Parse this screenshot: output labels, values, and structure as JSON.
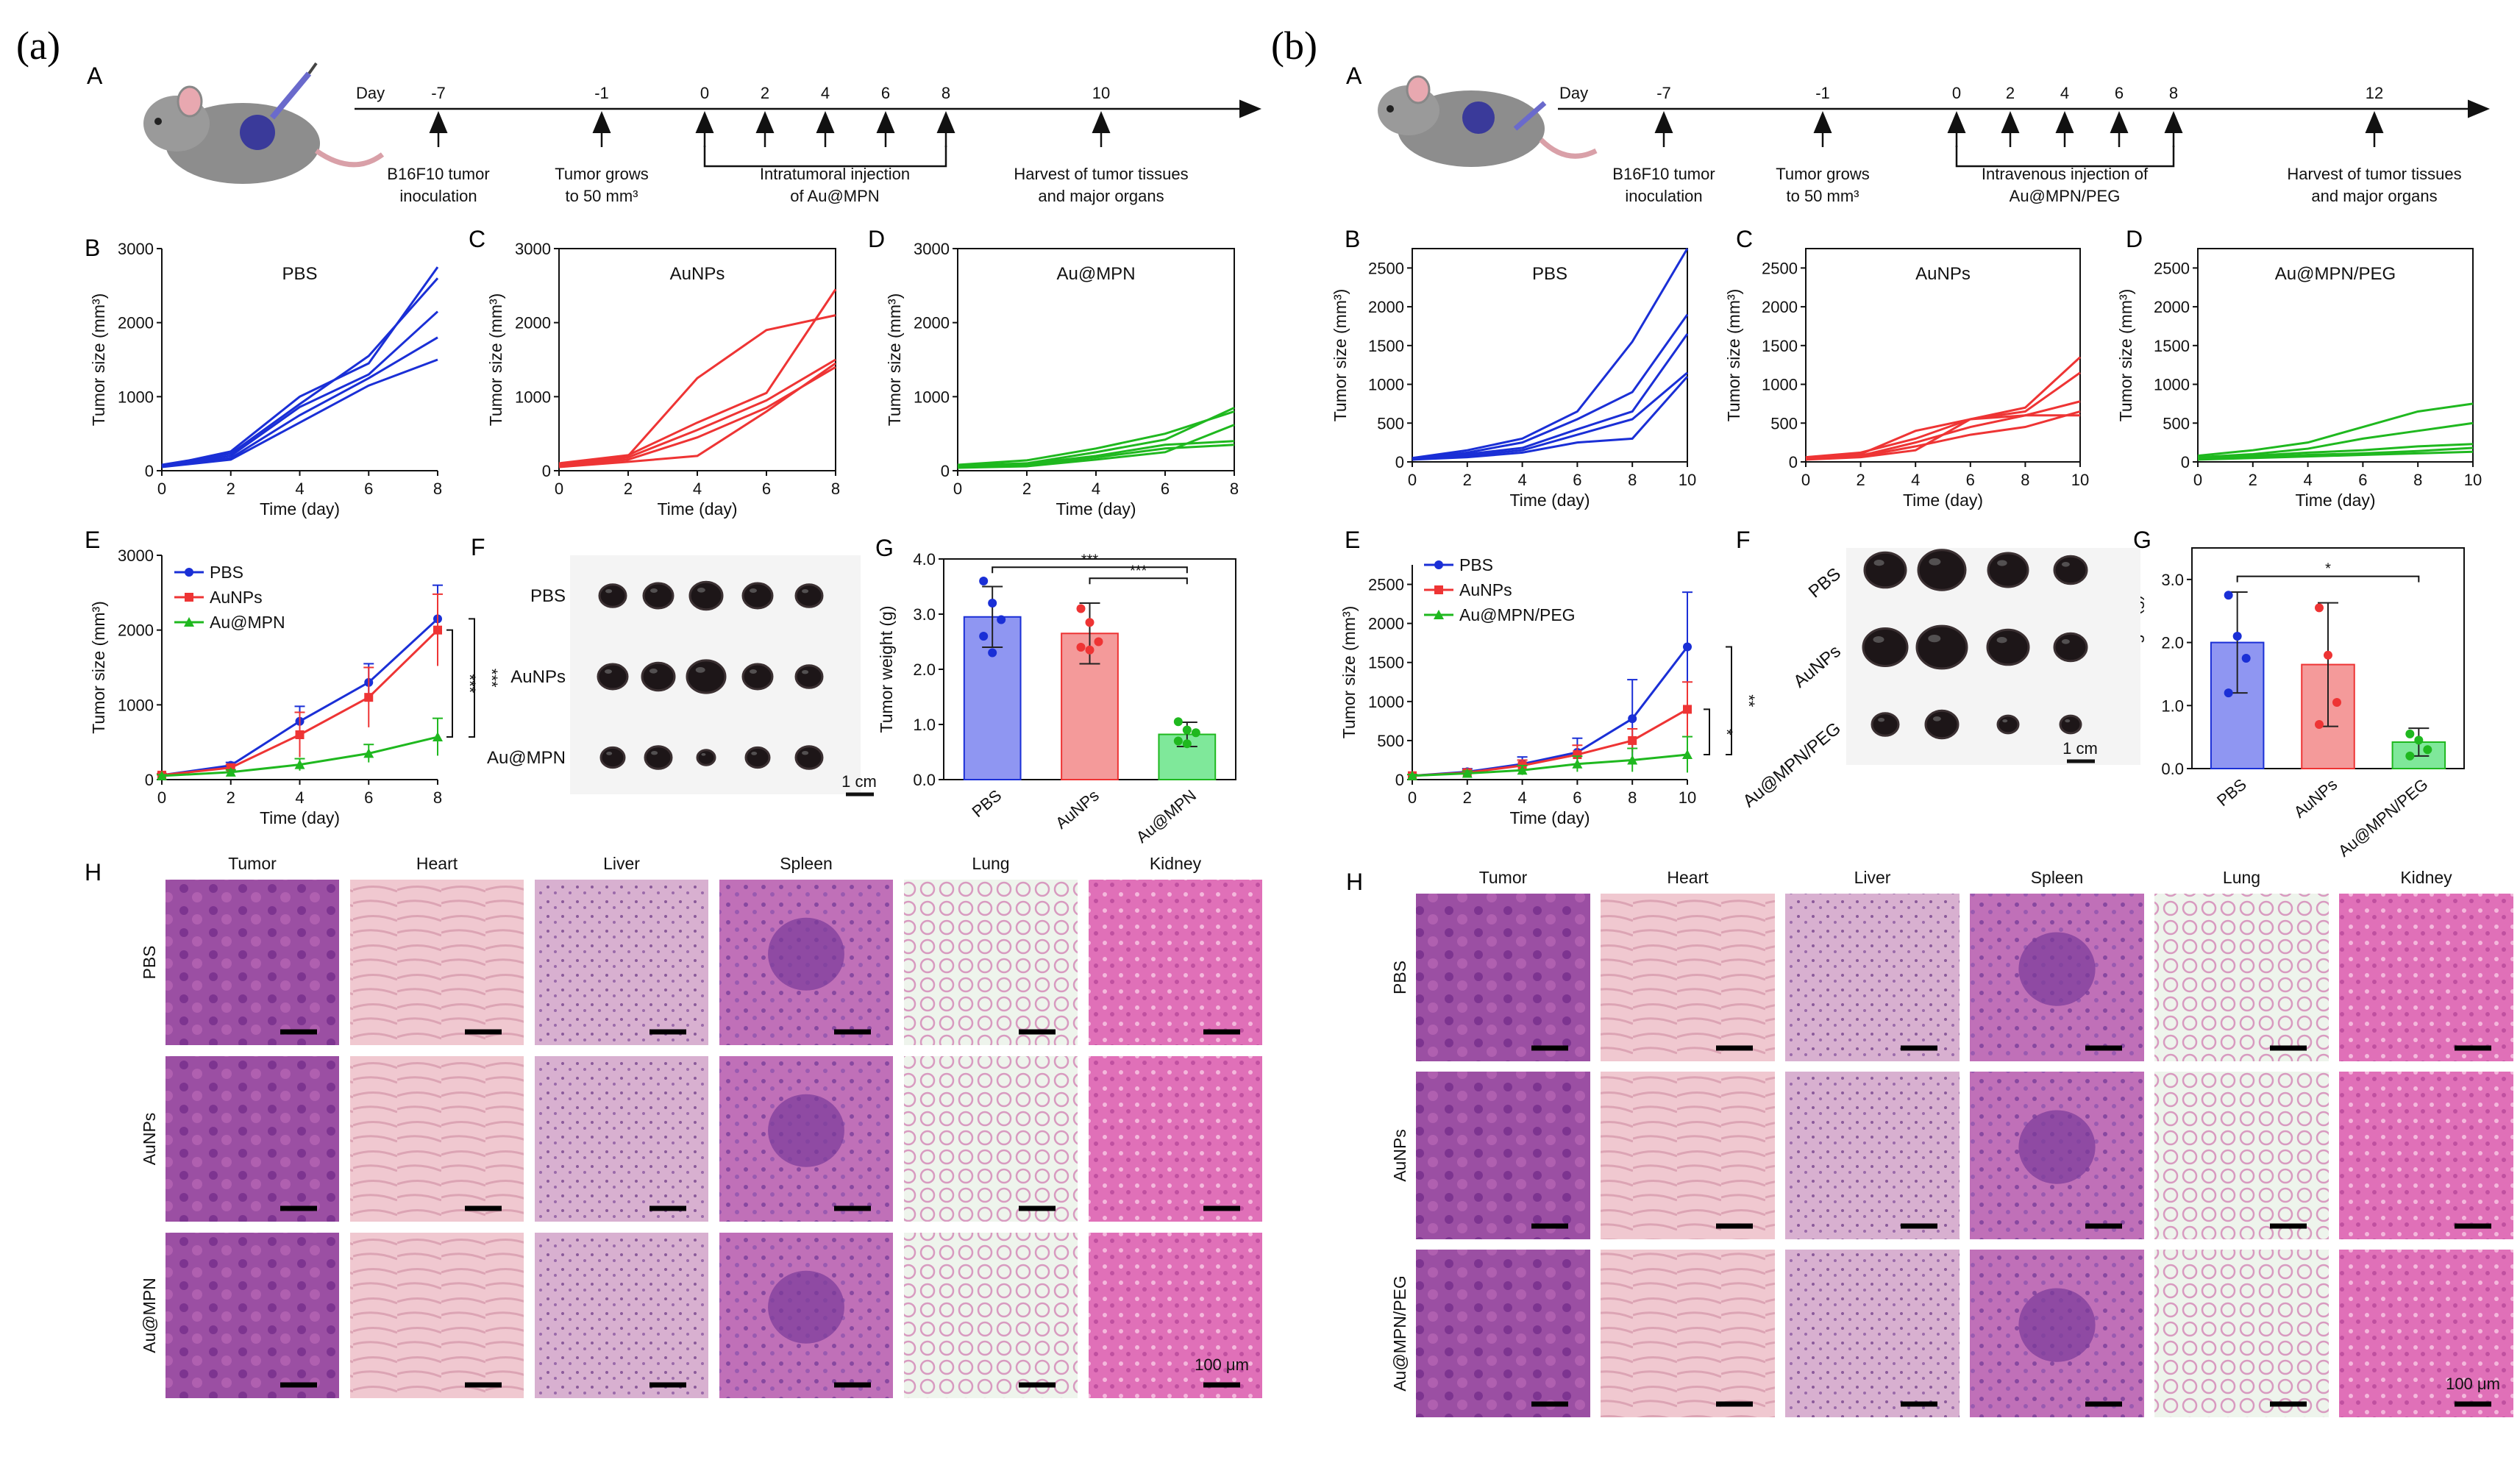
{
  "panel_letters": {
    "a": "(a)",
    "b": "(b)"
  },
  "sub_a": {
    "A": "A",
    "B": "B",
    "C": "C",
    "D": "D",
    "E": "E",
    "F": "F",
    "G": "G",
    "H": "H"
  },
  "sub_b": {
    "A": "A",
    "B": "B",
    "C": "C",
    "D": "D",
    "E": "E",
    "F": "F",
    "G": "G",
    "H": "H"
  },
  "timeline_a": {
    "day_label": "Day",
    "ticks": [
      "-7",
      "-1",
      "0",
      "2",
      "4",
      "6",
      "8",
      "10"
    ],
    "labels": [
      [
        "B16F10 tumor",
        "inoculation"
      ],
      [
        "Tumor grows",
        "to 50 mm³"
      ],
      [
        "Intratumoral injection",
        "of Au@MPN"
      ],
      [
        "Harvest of tumor tissues",
        "and major organs"
      ]
    ]
  },
  "timeline_b": {
    "day_label": "Day",
    "ticks": [
      "-7",
      "-1",
      "0",
      "2",
      "4",
      "6",
      "8",
      "12"
    ],
    "labels": [
      [
        "B16F10 tumor",
        "inoculation"
      ],
      [
        "Tumor grows",
        "to 50 mm³"
      ],
      [
        "Intravenous injection of",
        "Au@MPN/PEG"
      ],
      [
        "Harvest of tumor tissues",
        "and major organs"
      ]
    ]
  },
  "axis_text": {
    "time": "Time (day)",
    "tumor_size": "Tumor size (mm³)",
    "tumor_weight": "Tumor weight (g)"
  },
  "legend_a": [
    "PBS",
    "AuNPs",
    "Au@MPN"
  ],
  "legend_b": [
    "PBS",
    "AuNPs",
    "Au@MPN/PEG"
  ],
  "photo_a": {
    "rows": [
      "PBS",
      "AuNPs",
      "Au@MPN"
    ],
    "scale": "1 cm"
  },
  "photo_b": {
    "rows": [
      "PBS",
      "AuNPs",
      "Au@MPN/PEG"
    ],
    "scale": "1 cm"
  },
  "histo_a": {
    "cols": [
      "Tumor",
      "Heart",
      "Liver",
      "Spleen",
      "Lung",
      "Kidney"
    ],
    "rows": [
      "PBS",
      "AuNPs",
      "Au@MPN"
    ],
    "scale": "100 μm"
  },
  "histo_b": {
    "cols": [
      "Tumor",
      "Heart",
      "Liver",
      "Spleen",
      "Lung",
      "Kidney"
    ],
    "rows": [
      "PBS",
      "AuNPs",
      "Au@MPN/PEG"
    ],
    "scale": "100 μm"
  },
  "colors": {
    "PBS": "#1a2fd6",
    "AuNPs": "#ee3434",
    "AuMPN": "#1fb81f",
    "bar_pbs": "#8f96f2",
    "bar_aunps": "#f49a9a",
    "bar_aumpn": "#7fe89a"
  },
  "chart_data": [
    {
      "id": "aB",
      "type": "line",
      "title": "PBS",
      "xlabel": "Time (day)",
      "ylabel": "Tumor size (mm³)",
      "xlim": [
        0,
        8
      ],
      "ylim": [
        0,
        3000
      ],
      "xticks": [
        0,
        2,
        4,
        6,
        8
      ],
      "yticks": [
        0,
        1000,
        2000,
        3000
      ],
      "x": [
        0,
        2,
        4,
        6,
        8
      ],
      "color": "#1a2fd6",
      "series": [
        {
          "values": [
            60,
            260,
            1000,
            1450,
            2750
          ]
        },
        {
          "values": [
            80,
            230,
            900,
            1550,
            2600
          ]
        },
        {
          "values": [
            70,
            200,
            860,
            1300,
            2150
          ]
        },
        {
          "values": [
            60,
            170,
            750,
            1250,
            1800
          ]
        },
        {
          "values": [
            50,
            150,
            650,
            1150,
            1500
          ]
        }
      ]
    },
    {
      "id": "aC",
      "type": "line",
      "title": "AuNPs",
      "xlabel": "Time (day)",
      "ylabel": "Tumor size (mm³)",
      "xlim": [
        0,
        8
      ],
      "ylim": [
        0,
        3000
      ],
      "xticks": [
        0,
        2,
        4,
        6,
        8
      ],
      "yticks": [
        0,
        1000,
        2000,
        3000
      ],
      "x": [
        0,
        2,
        4,
        6,
        8
      ],
      "color": "#ee3434",
      "series": [
        {
          "values": [
            80,
            200,
            1250,
            1900,
            2100
          ]
        },
        {
          "values": [
            100,
            210,
            650,
            1050,
            2450
          ]
        },
        {
          "values": [
            70,
            180,
            550,
            950,
            1500
          ]
        },
        {
          "values": [
            60,
            150,
            450,
            850,
            1400
          ]
        },
        {
          "values": [
            50,
            120,
            200,
            800,
            1450
          ]
        }
      ]
    },
    {
      "id": "aD",
      "type": "line",
      "title": "Au@MPN",
      "xlabel": "Time (day)",
      "ylabel": "Tumor size (mm³)",
      "xlim": [
        0,
        8
      ],
      "ylim": [
        0,
        3000
      ],
      "xticks": [
        0,
        2,
        4,
        6,
        8
      ],
      "yticks": [
        0,
        1000,
        2000,
        3000
      ],
      "x": [
        0,
        2,
        4,
        6,
        8
      ],
      "color": "#1fb81f",
      "series": [
        {
          "values": [
            80,
            140,
            300,
            500,
            800
          ]
        },
        {
          "values": [
            70,
            100,
            250,
            420,
            850
          ]
        },
        {
          "values": [
            60,
            90,
            200,
            350,
            400
          ]
        },
        {
          "values": [
            50,
            80,
            180,
            300,
            350
          ]
        },
        {
          "values": [
            40,
            60,
            150,
            250,
            620
          ]
        }
      ]
    },
    {
      "id": "aE",
      "type": "line",
      "xlabel": "Time (day)",
      "ylabel": "Tumor size (mm³)",
      "xlim": [
        0,
        8
      ],
      "ylim": [
        0,
        3000
      ],
      "xticks": [
        0,
        2,
        4,
        6,
        8
      ],
      "yticks": [
        0,
        1000,
        2000,
        3000
      ],
      "x": [
        0,
        2,
        4,
        6,
        8
      ],
      "significance": [
        "***",
        "***"
      ],
      "series": [
        {
          "name": "PBS",
          "color": "#1a2fd6",
          "values": [
            60,
            190,
            780,
            1300,
            2150
          ],
          "err": [
            20,
            40,
            200,
            250,
            450
          ]
        },
        {
          "name": "AuNPs",
          "color": "#ee3434",
          "values": [
            60,
            160,
            600,
            1100,
            2000
          ],
          "err": [
            20,
            40,
            300,
            400,
            480
          ]
        },
        {
          "name": "Au@MPN",
          "color": "#1fb81f",
          "values": [
            50,
            100,
            200,
            350,
            570
          ],
          "err": [
            15,
            30,
            80,
            120,
            250
          ]
        }
      ]
    },
    {
      "id": "aG",
      "type": "bar",
      "xlabel": "",
      "ylabel": "Tumor weight (g)",
      "ylim": [
        0,
        4
      ],
      "yticks": [
        0.0,
        1.0,
        2.0,
        3.0,
        4.0
      ],
      "categories": [
        "PBS",
        "AuNPs",
        "Au@MPN"
      ],
      "values": [
        2.95,
        2.65,
        0.82
      ],
      "err": [
        0.55,
        0.55,
        0.22
      ],
      "points": [
        [
          3.6,
          3.2,
          2.9,
          2.6,
          2.3
        ],
        [
          3.1,
          2.85,
          2.5,
          2.4,
          2.35
        ],
        [
          1.05,
          0.9,
          0.85,
          0.7,
          0.65
        ]
      ],
      "significance": [
        "***",
        "***"
      ]
    },
    {
      "id": "bB",
      "type": "line",
      "title": "PBS",
      "xlabel": "Time (day)",
      "ylabel": "Tumor size (mm³)",
      "xlim": [
        0,
        10
      ],
      "ylim": [
        0,
        2750
      ],
      "xticks": [
        0,
        2,
        4,
        6,
        8,
        10
      ],
      "yticks": [
        0,
        500,
        1000,
        1500,
        2000,
        2500
      ],
      "x": [
        0,
        2,
        4,
        6,
        8,
        10
      ],
      "color": "#1a2fd6",
      "series": [
        {
          "values": [
            50,
            150,
            300,
            650,
            1550,
            2750
          ]
        },
        {
          "values": [
            40,
            120,
            250,
            550,
            900,
            1900
          ]
        },
        {
          "values": [
            40,
            100,
            180,
            420,
            650,
            1650
          ]
        },
        {
          "values": [
            30,
            80,
            150,
            350,
            550,
            1150
          ]
        },
        {
          "values": [
            30,
            60,
            120,
            250,
            300,
            1100
          ]
        }
      ]
    },
    {
      "id": "bC",
      "type": "line",
      "title": "AuNPs",
      "xlabel": "Time (day)",
      "ylabel": "Tumor size (mm³)",
      "xlim": [
        0,
        10
      ],
      "ylim": [
        0,
        2750
      ],
      "xticks": [
        0,
        2,
        4,
        6,
        8,
        10
      ],
      "yticks": [
        0,
        500,
        1000,
        1500,
        2000,
        2500
      ],
      "x": [
        0,
        2,
        4,
        6,
        8,
        10
      ],
      "color": "#ee3434",
      "series": [
        {
          "values": [
            60,
            120,
            300,
            550,
            700,
            1350
          ]
        },
        {
          "values": [
            50,
            100,
            400,
            550,
            650,
            1150
          ]
        },
        {
          "values": [
            50,
            80,
            250,
            450,
            600,
            780
          ]
        },
        {
          "values": [
            40,
            70,
            200,
            350,
            450,
            650
          ]
        },
        {
          "values": [
            30,
            60,
            150,
            550,
            600,
            600
          ]
        }
      ]
    },
    {
      "id": "bD",
      "type": "line",
      "title": "Au@MPN/PEG",
      "xlabel": "Time (day)",
      "ylabel": "Tumor size (mm³)",
      "xlim": [
        0,
        10
      ],
      "ylim": [
        0,
        2750
      ],
      "xticks": [
        0,
        2,
        4,
        6,
        8,
        10
      ],
      "yticks": [
        0,
        500,
        1000,
        1500,
        2000,
        2500
      ],
      "x": [
        0,
        2,
        4,
        6,
        8,
        10
      ],
      "color": "#1fb81f",
      "series": [
        {
          "values": [
            80,
            150,
            250,
            450,
            650,
            750
          ]
        },
        {
          "values": [
            60,
            100,
            170,
            300,
            400,
            500
          ]
        },
        {
          "values": [
            50,
            80,
            120,
            150,
            200,
            230
          ]
        },
        {
          "values": [
            40,
            60,
            90,
            110,
            140,
            180
          ]
        },
        {
          "values": [
            30,
            50,
            70,
            90,
            110,
            130
          ]
        }
      ]
    },
    {
      "id": "bE",
      "type": "line",
      "xlabel": "Time (day)",
      "ylabel": "Tumor size (mm³)",
      "xlim": [
        0,
        10
      ],
      "ylim": [
        0,
        2750
      ],
      "xticks": [
        0,
        2,
        4,
        6,
        8,
        10
      ],
      "yticks": [
        0,
        500,
        1000,
        1500,
        2000,
        2500
      ],
      "x": [
        0,
        2,
        4,
        6,
        8,
        10
      ],
      "significance": [
        "*",
        "**"
      ],
      "series": [
        {
          "name": "PBS",
          "color": "#1a2fd6",
          "values": [
            50,
            100,
            200,
            350,
            780,
            1700
          ],
          "err": [
            15,
            40,
            90,
            180,
            500,
            700
          ]
        },
        {
          "name": "AuNPs",
          "color": "#ee3434",
          "values": [
            50,
            90,
            180,
            320,
            500,
            900
          ],
          "err": [
            15,
            30,
            70,
            120,
            150,
            350
          ]
        },
        {
          "name": "Au@MPN/PEG",
          "color": "#1fb81f",
          "values": [
            50,
            80,
            120,
            200,
            250,
            320
          ],
          "err": [
            15,
            30,
            60,
            100,
            150,
            230
          ]
        }
      ]
    },
    {
      "id": "bG",
      "type": "bar",
      "xlabel": "",
      "ylabel": "Tumor weight (g)",
      "ylim": [
        0,
        3.5
      ],
      "yticks": [
        0.0,
        1.0,
        2.0,
        3.0
      ],
      "categories": [
        "PBS",
        "AuNPs",
        "Au@MPN/PEG"
      ],
      "values": [
        2.0,
        1.65,
        0.42
      ],
      "err": [
        0.8,
        0.98,
        0.22
      ],
      "points": [
        [
          2.75,
          2.1,
          1.75,
          1.2
        ],
        [
          2.55,
          1.8,
          1.05,
          0.7
        ],
        [
          0.55,
          0.45,
          0.3,
          0.2
        ]
      ],
      "significance": [
        "*"
      ]
    }
  ]
}
